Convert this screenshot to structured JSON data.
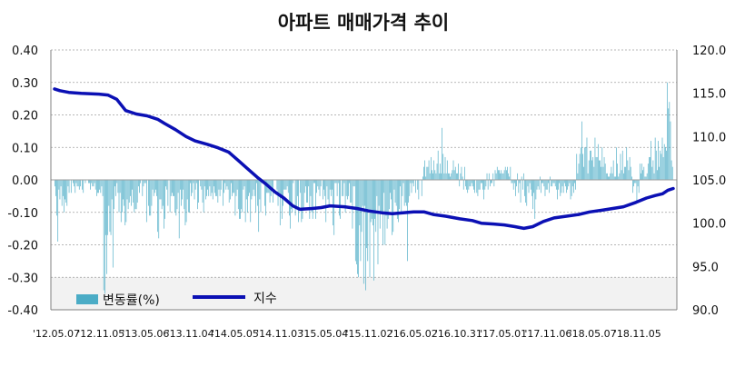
{
  "chart_data": {
    "type": "bar+line",
    "title": "아파트 매매가격 추이",
    "left_axis": {
      "ylim": [
        -0.4,
        0.4
      ],
      "ticks": [
        "0.40",
        "0.30",
        "0.20",
        "0.10",
        "0.00",
        "-0.10",
        "-0.20",
        "-0.30",
        "-0.40"
      ]
    },
    "right_axis": {
      "ylim": [
        90.0,
        120.0
      ],
      "ticks": [
        "120.0",
        "115.0",
        "110.0",
        "105.0",
        "100.0",
        "95.0",
        "90.0"
      ]
    },
    "x_ticks": [
      "'12.05.07",
      "'12.11.05",
      "'13.05.06",
      "'13.11.04",
      "'14.05.05",
      "'14.11.03",
      "'15.05.04",
      "'15.11.02",
      "'16.05.02",
      "'16.10.31",
      "'17.05.01",
      "'17.11.06",
      "'18.05.07",
      "'18.11.05"
    ],
    "grid": true,
    "legend": {
      "position": "bottom-left",
      "bar_label": "변동률(%)",
      "line_label": "지수"
    },
    "colors": {
      "bar": "#4bacc6",
      "line": "#0b10b4",
      "grid": "#a0a0a0"
    },
    "index_series": {
      "name": "지수",
      "points": [
        [
          0,
          115.5
        ],
        [
          3,
          115.3
        ],
        [
          8,
          115.1
        ],
        [
          15,
          115.0
        ],
        [
          25,
          114.9
        ],
        [
          30,
          114.8
        ],
        [
          35,
          114.3
        ],
        [
          40,
          113.0
        ],
        [
          46,
          112.6
        ],
        [
          52,
          112.4
        ],
        [
          58,
          112.0
        ],
        [
          62,
          111.5
        ],
        [
          68,
          110.8
        ],
        [
          74,
          110.0
        ],
        [
          79,
          109.5
        ],
        [
          86,
          109.1
        ],
        [
          92,
          108.7
        ],
        [
          98,
          108.2
        ],
        [
          103,
          107.3
        ],
        [
          108,
          106.4
        ],
        [
          114,
          105.3
        ],
        [
          119,
          104.5
        ],
        [
          124,
          103.6
        ],
        [
          129,
          102.9
        ],
        [
          134,
          102.0
        ],
        [
          138,
          101.6
        ],
        [
          145,
          101.7
        ],
        [
          150,
          101.8
        ],
        [
          155,
          102.0
        ],
        [
          163,
          101.9
        ],
        [
          170,
          101.7
        ],
        [
          177,
          101.4
        ],
        [
          184,
          101.2
        ],
        [
          190,
          101.1
        ],
        [
          196,
          101.2
        ],
        [
          202,
          101.3
        ],
        [
          208,
          101.3
        ],
        [
          213,
          101.0
        ],
        [
          220,
          100.8
        ],
        [
          228,
          100.5
        ],
        [
          235,
          100.3
        ],
        [
          240,
          100.0
        ],
        [
          247,
          99.9
        ],
        [
          253,
          99.8
        ],
        [
          259,
          99.6
        ],
        [
          264,
          99.4
        ],
        [
          269,
          99.6
        ],
        [
          275,
          100.2
        ],
        [
          281,
          100.6
        ],
        [
          288,
          100.8
        ],
        [
          295,
          101.0
        ],
        [
          301,
          101.3
        ],
        [
          308,
          101.5
        ],
        [
          314,
          101.7
        ],
        [
          320,
          101.9
        ],
        [
          327,
          102.4
        ],
        [
          333,
          102.9
        ],
        [
          338,
          103.2
        ],
        [
          342,
          103.4
        ],
        [
          345,
          103.8
        ],
        [
          348,
          104.0
        ]
      ]
    },
    "weekly_change_series": {
      "name": "변동률(%)",
      "values": [
        -0.02,
        -0.05,
        -0.11,
        -0.19,
        -0.03,
        -0.06,
        -0.02,
        -0.08,
        -0.05,
        -0.1,
        -0.06,
        -0.07,
        -0.08,
        -0.02,
        -0.04,
        -0.0,
        -0.04,
        0.0,
        -0.01,
        -0.02,
        -0.04,
        -0.01,
        -0.02,
        -0.02,
        -0.03,
        -0.02,
        -0.0,
        -0.03,
        -0.04,
        -0.0,
        -0.01,
        0.0,
        0.0,
        -0.01,
        -0.01,
        -0.03,
        -0.01,
        -0.02,
        -0.02,
        -0.01,
        -0.03,
        -0.05,
        -0.04,
        -0.04,
        -0.03,
        -0.04,
        -0.02,
        -0.05,
        -0.34,
        -0.35,
        -0.17,
        -0.29,
        -0.17,
        -0.08,
        -0.16,
        -0.17,
        -0.06,
        -0.27,
        -0.09,
        -0.02,
        -0.05,
        -0.01,
        -0.04,
        -0.1,
        -0.04,
        -0.13,
        -0.1,
        -0.06,
        -0.08,
        -0.14,
        -0.13,
        -0.06,
        -0.09,
        -0.07,
        -0.05,
        -0.08,
        -0.03,
        -0.07,
        -0.1,
        -0.09,
        -0.09,
        -0.07,
        -0.02,
        -0.04,
        -0.01,
        -0.0,
        -0.05,
        -0.02,
        -0.01,
        -0.01,
        -0.13,
        -0.0,
        -0.08,
        -0.11,
        -0.11,
        -0.08,
        -0.03,
        -0.05,
        -0.04,
        -0.03,
        -0.05,
        -0.16,
        -0.18,
        -0.06,
        -0.06,
        -0.09,
        -0.08,
        -0.15,
        -0.12,
        -0.02,
        -0.03,
        -0.08,
        -0.0,
        -0.1,
        -0.05,
        -0.04,
        -0.05,
        -0.05,
        -0.1,
        -0.11,
        -0.09,
        -0.04,
        -0.18,
        -0.03,
        -0.08,
        -0.06,
        -0.03,
        -0.09,
        -0.14,
        -0.13,
        -0.06,
        -0.1,
        -0.1,
        -0.01,
        -0.05,
        -0.04,
        -0.01,
        -0.06,
        -0.03,
        -0.01,
        -0.09,
        -0.07,
        -0.0,
        -0.02,
        -0.03,
        -0.07,
        -0.1,
        -0.02,
        -0.06,
        -0.05,
        -0.03,
        -0.05,
        -0.02,
        -0.05,
        -0.04,
        -0.06,
        -0.02,
        -0.04,
        -0.05,
        -0.05,
        -0.07,
        -0.03,
        -0.05,
        -0.03,
        -0.0,
        -0.08,
        -0.04,
        -0.01,
        -0.03,
        -0.02,
        -0.03,
        -0.07,
        -0.06,
        -0.01,
        -0.05,
        -0.04,
        -0.04,
        -0.11,
        -0.05,
        -0.03,
        -0.09,
        -0.12,
        -0.12,
        -0.09,
        -0.1,
        -0.03,
        -0.02,
        -0.13,
        -0.06,
        -0.1,
        -0.05,
        -0.04,
        -0.13,
        -0.06,
        -0.05,
        -0.03,
        -0.05,
        -0.1,
        -0.01,
        -0.08,
        -0.16,
        -0.06,
        -0.1,
        -0.01,
        -0.01,
        -0.01,
        -0.08,
        -0.11,
        -0.04,
        -0.04,
        -0.04,
        -0.07,
        -0.05,
        -0.03,
        -0.07,
        -0.0,
        -0.0,
        -0.0,
        -0.03,
        -0.08,
        -0.04,
        -0.14,
        -0.05,
        -0.12,
        -0.08,
        -0.03,
        -0.03,
        -0.03,
        -0.02,
        -0.04,
        -0.11,
        -0.15,
        -0.09,
        -0.1,
        -0.01,
        -0.0,
        -0.11,
        -0.09,
        -0.05,
        -0.13,
        -0.0,
        -0.04,
        -0.13,
        -0.12,
        -0.09,
        -0.04,
        -0.02,
        -0.07,
        -0.07,
        -0.02,
        -0.12,
        -0.05,
        -0.1,
        -0.12,
        -0.01,
        -0.01,
        -0.12,
        -0.04,
        -0.02,
        -0.03,
        -0.05,
        -0.02,
        -0.0,
        -0.06,
        -0.03,
        -0.05,
        -0.13,
        -0.02,
        -0.06,
        -0.08,
        -0.03,
        -0.05,
        -0.03,
        -0.14,
        -0.17,
        -0.01,
        -0.01,
        -0.05,
        -0.01,
        -0.11,
        -0.12,
        -0.0,
        -0.05,
        -0.05,
        -0.01,
        -0.1,
        -0.05,
        -0.06,
        -0.05,
        -0.01,
        -0.07,
        -0.07,
        -0.15,
        -0.02,
        -0.02,
        -0.25,
        -0.26,
        -0.29,
        -0.3,
        -0.14,
        -0.25,
        -0.16,
        -0.08,
        -0.32,
        -0.08,
        -0.34,
        -0.21,
        -0.25,
        -0.09,
        -0.3,
        -0.13,
        -0.12,
        -0.14,
        -0.31,
        -0.12,
        -0.16,
        -0.05,
        -0.26,
        -0.08,
        -0.15,
        -0.1,
        -0.1,
        -0.2,
        -0.04,
        -0.2,
        -0.11,
        -0.15,
        -0.12,
        -0.09,
        -0.04,
        -0.06,
        -0.17,
        -0.16,
        -0.03,
        -0.07,
        -0.08,
        -0.12,
        -0.13,
        -0.09,
        -0.02,
        -0.1,
        -0.05,
        -0.01,
        -0.08,
        -0.07,
        -0.08,
        -0.25,
        -0.07,
        -0.05,
        -0.01,
        -0.04,
        -0.01,
        -0.02,
        -0.0,
        -0.04,
        -0.0,
        -0.03,
        -0.06,
        -0.0,
        -0.0,
        -0.05,
        0.01,
        0.04,
        0.06,
        0.01,
        0.04,
        0.04,
        0.06,
        0.02,
        0.07,
        0.03,
        0.02,
        0.06,
        0.03,
        0.02,
        0.05,
        0.09,
        0.02,
        0.05,
        0.02,
        0.16,
        0.08,
        0.02,
        0.07,
        0.02,
        0.06,
        0.02,
        0.02,
        0.01,
        0.02,
        0.03,
        0.06,
        0.03,
        0.04,
        0.02,
        0.02,
        0.05,
        -0.02,
        0.02,
        0.04,
        0.01,
        -0.03,
        0.04,
        -0.02,
        -0.03,
        -0.04,
        -0.03,
        -0.02,
        -0.02,
        -0.01,
        -0.02,
        -0.03,
        -0.04,
        0.0,
        -0.04,
        -0.05,
        -0.03,
        -0.03,
        -0.01,
        -0.01,
        -0.03,
        -0.06,
        -0.03,
        -0.02,
        0.02,
        -0.03,
        0.02,
        -0.02,
        -0.01,
        -0.01,
        0.02,
        -0.02,
        0.03,
        0.02,
        0.04,
        0.03,
        0.03,
        0.02,
        0.03,
        0.02,
        0.02,
        0.03,
        0.04,
        0.03,
        0.04,
        0.02,
        0.01,
        0.04,
        -0.01,
        -0.01,
        -0.03,
        -0.01,
        -0.05,
        -0.02,
        0.02,
        -0.04,
        -0.01,
        -0.07,
        0.01,
        -0.03,
        0.02,
        -0.05,
        -0.07,
        -0.08,
        -0.02,
        -0.04,
        -0.01,
        -0.03,
        -0.05,
        -0.09,
        -0.04,
        -0.12,
        -0.06,
        -0.03,
        -0.02,
        -0.03,
        0.01,
        -0.04,
        -0.01,
        -0.01,
        -0.02,
        -0.05,
        -0.03,
        -0.03,
        -0.01,
        -0.04,
        0.01,
        -0.02,
        -0.02,
        -0.01,
        -0.01,
        -0.02,
        -0.03,
        -0.06,
        -0.03,
        -0.01,
        -0.05,
        -0.04,
        -0.02,
        -0.04,
        -0.01,
        -0.02,
        -0.04,
        -0.03,
        -0.02,
        -0.01,
        -0.06,
        -0.05,
        -0.02,
        -0.04,
        -0.01,
        -0.03,
        0.08,
        0.02,
        0.05,
        0.08,
        0.1,
        0.18,
        0.08,
        0.04,
        0.1,
        0.1,
        0.13,
        0.02,
        0.06,
        0.09,
        0.09,
        0.06,
        0.07,
        0.04,
        0.13,
        0.07,
        0.07,
        0.11,
        0.06,
        0.06,
        0.04,
        0.1,
        0.04,
        0.07,
        0.05,
        0.02,
        0.02,
        0.01,
        0.01,
        0.02,
        0.04,
        0.02,
        0.06,
        0.01,
        0.01,
        0.1,
        0.05,
        0.01,
        0.02,
        0.08,
        0.03,
        0.09,
        0.02,
        0.04,
        0.04,
        0.1,
        0.06,
        0.03,
        0.07,
        0.04,
        0.01,
        -0.04,
        -0.02,
        -0.01,
        -0.01,
        -0.07,
        -0.02,
        -0.04,
        0.05,
        0.02,
        0.05,
        0.03,
        0.04,
        0.01,
        0.01,
        0.02,
        0.05,
        0.07,
        0.07,
        0.12,
        0.04,
        0.06,
        0.02,
        0.13,
        0.09,
        0.03,
        0.12,
        0.04,
        0.09,
        0.08,
        0.13,
        0.07,
        0.11,
        0.1,
        0.09,
        0.3,
        0.22,
        0.24,
        0.18,
        0.06,
        0.04
      ]
    }
  }
}
